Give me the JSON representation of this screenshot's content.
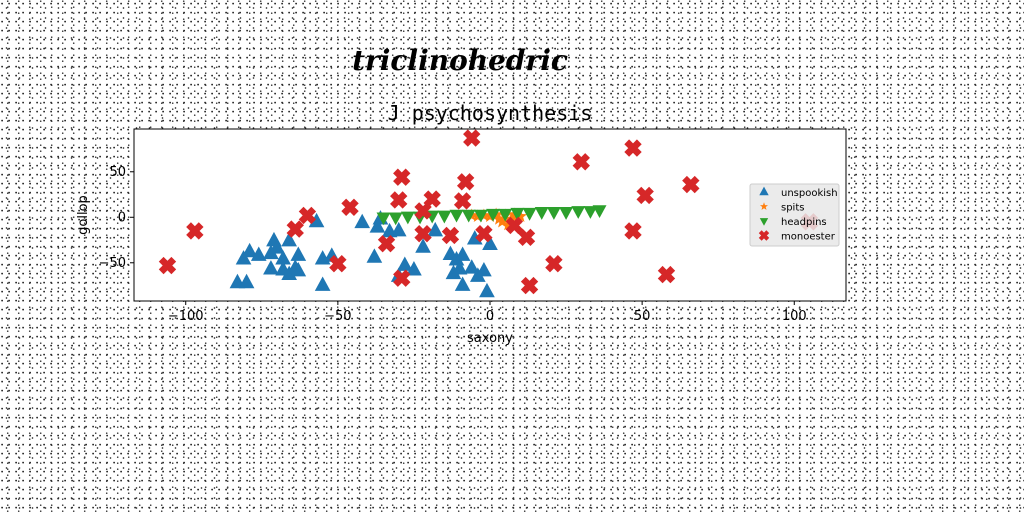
{
  "chart_data": {
    "type": "scatter",
    "suptitle": "triclinohedric",
    "title": "J psychosynthesis",
    "xlabel": "saxony",
    "ylabel": "gollop",
    "xlim": [
      -117,
      117
    ],
    "ylim": [
      -92,
      97
    ],
    "xticks": [
      -100,
      -50,
      0,
      50,
      100
    ],
    "xtick_labels": [
      "−100",
      "−50",
      "0",
      "50",
      "100"
    ],
    "yticks": [
      -50,
      0,
      50
    ],
    "ytick_labels": [
      "−50",
      "0",
      "50"
    ],
    "legend_position": "center-right",
    "series": [
      {
        "name": "unspookish",
        "marker": "triangle-up",
        "color": "#1f77b4",
        "points": [
          [
            -83,
            -72
          ],
          [
            -81,
            -46
          ],
          [
            -79,
            -38
          ],
          [
            -80,
            -72
          ],
          [
            -76,
            -42
          ],
          [
            -72,
            -57
          ],
          [
            -72,
            -40
          ],
          [
            -71,
            -26
          ],
          [
            -70,
            -34
          ],
          [
            -68,
            -46
          ],
          [
            -68,
            -58
          ],
          [
            -66,
            -26
          ],
          [
            -66,
            -63
          ],
          [
            -64,
            -56
          ],
          [
            -63,
            -42
          ],
          [
            -63,
            -59
          ],
          [
            -57,
            -5
          ],
          [
            -55,
            -46
          ],
          [
            -55,
            -75
          ],
          [
            -52,
            -43
          ],
          [
            -42,
            -6
          ],
          [
            -38,
            -44
          ],
          [
            -37,
            -11
          ],
          [
            -36,
            -2
          ],
          [
            -33,
            -16
          ],
          [
            -30,
            -15
          ],
          [
            -30,
            -65
          ],
          [
            -28,
            -53
          ],
          [
            -25,
            -58
          ],
          [
            -22,
            -33
          ],
          [
            -18,
            -15
          ],
          [
            -13,
            -41
          ],
          [
            -12,
            -62
          ],
          [
            -11,
            -47
          ],
          [
            -10,
            -57
          ],
          [
            -9,
            -75
          ],
          [
            -9,
            -42
          ],
          [
            -6,
            -56
          ],
          [
            -5,
            -24
          ],
          [
            -4,
            -65
          ],
          [
            -2,
            -59
          ],
          [
            -1,
            -82
          ],
          [
            0,
            -30
          ]
        ]
      },
      {
        "name": "spits",
        "marker": "star",
        "color": "#ff7f0e",
        "points": [
          [
            -6,
            2
          ],
          [
            -4,
            1
          ],
          [
            -2,
            2
          ],
          [
            0,
            1
          ],
          [
            2,
            3
          ],
          [
            3,
            -2
          ],
          [
            4,
            -5
          ],
          [
            5,
            2
          ],
          [
            6,
            -8
          ],
          [
            7,
            -2
          ],
          [
            8,
            3
          ],
          [
            9,
            -1
          ],
          [
            10,
            1
          ]
        ]
      },
      {
        "name": "headpins",
        "marker": "triangle-down",
        "color": "#2ca02c",
        "points": [
          [
            -35,
            0
          ],
          [
            -31,
            0
          ],
          [
            -27,
            1
          ],
          [
            -23,
            1
          ],
          [
            -19,
            2
          ],
          [
            -15,
            2
          ],
          [
            -11,
            3
          ],
          [
            -7,
            3
          ],
          [
            -3,
            3
          ],
          [
            1,
            4
          ],
          [
            5,
            4
          ],
          [
            9,
            5
          ],
          [
            13,
            5
          ],
          [
            17,
            6
          ],
          [
            21,
            6
          ],
          [
            25,
            6
          ],
          [
            29,
            7
          ],
          [
            33,
            7
          ],
          [
            36,
            8
          ]
        ]
      },
      {
        "name": "monoester",
        "marker": "x",
        "color": "#d62728",
        "points": [
          [
            -106,
            -53
          ],
          [
            -97,
            -15
          ],
          [
            -64,
            -13
          ],
          [
            -60,
            2
          ],
          [
            -46,
            11
          ],
          [
            -50,
            -51
          ],
          [
            -34,
            -29
          ],
          [
            -30,
            19
          ],
          [
            -29,
            44
          ],
          [
            -29,
            -67
          ],
          [
            -22,
            7
          ],
          [
            -22,
            -18
          ],
          [
            -19,
            20
          ],
          [
            -13,
            -20
          ],
          [
            -9,
            18
          ],
          [
            -8,
            39
          ],
          [
            -6,
            87
          ],
          [
            -2,
            -18
          ],
          [
            8,
            -9
          ],
          [
            12,
            -22
          ],
          [
            13,
            -75
          ],
          [
            21,
            -51
          ],
          [
            30,
            61
          ],
          [
            47,
            76
          ],
          [
            47,
            -15
          ],
          [
            51,
            24
          ],
          [
            58,
            -63
          ],
          [
            66,
            36
          ],
          [
            105,
            -5
          ]
        ]
      }
    ]
  }
}
